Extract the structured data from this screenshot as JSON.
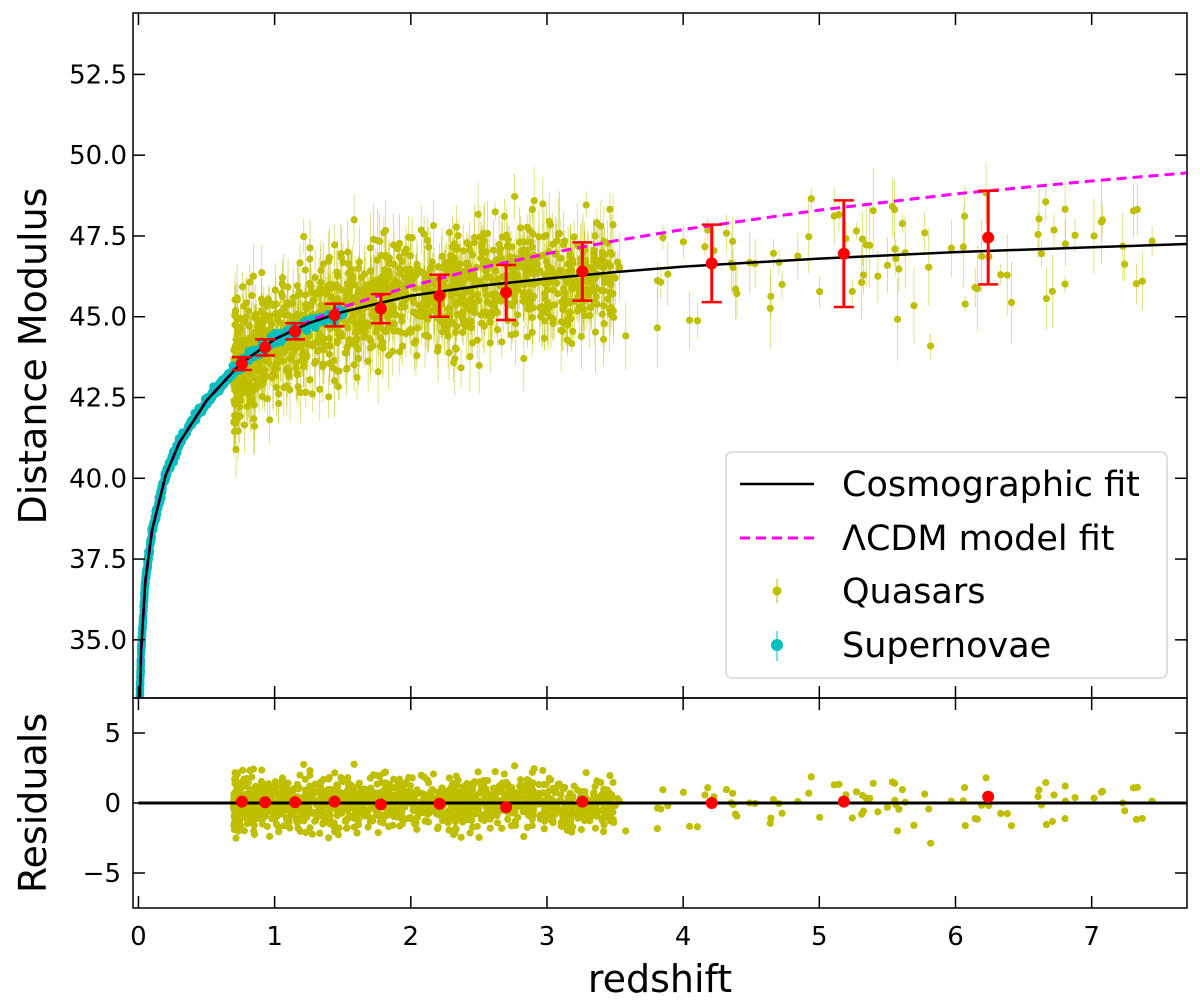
{
  "chart_data": [
    {
      "type": "scatter",
      "panel": "main",
      "title": "",
      "xlabel": "",
      "ylabel": "Distance Modulus",
      "xlim": [
        -0.04,
        7.7
      ],
      "ylim": [
        33.2,
        54.4
      ],
      "xticks": [
        0,
        1,
        2,
        3,
        4,
        5,
        6,
        7
      ],
      "yticks": [
        35.0,
        37.5,
        40.0,
        42.5,
        45.0,
        47.5,
        50.0,
        52.5
      ],
      "ytick_labels": [
        "35.0",
        "37.5",
        "40.0",
        "42.5",
        "45.0",
        "47.5",
        "50.0",
        "52.5"
      ],
      "legend": {
        "location": "lower-right",
        "entries": [
          "Cosmographic fit",
          "ΛCDM model fit",
          "Quasars",
          "Supernovae"
        ]
      },
      "series": [
        {
          "name": "Cosmographic fit",
          "kind": "line",
          "color": "#000000",
          "x": [
            0.01,
            0.02,
            0.05,
            0.1,
            0.2,
            0.3,
            0.5,
            0.75,
            1.0,
            1.25,
            1.5,
            2.0,
            2.5,
            3.0,
            3.5,
            4.0,
            5.0,
            6.0,
            7.0,
            7.7
          ],
          "y": [
            33.2,
            34.7,
            36.8,
            38.4,
            40.1,
            41.1,
            42.4,
            43.55,
            44.3,
            44.8,
            45.15,
            45.65,
            45.95,
            46.18,
            46.38,
            46.55,
            46.8,
            47.0,
            47.15,
            47.25
          ]
        },
        {
          "name": "ΛCDM model fit",
          "kind": "dashed-line",
          "color": "#ff00ff",
          "x": [
            0.01,
            0.02,
            0.05,
            0.1,
            0.2,
            0.3,
            0.5,
            0.75,
            1.0,
            1.25,
            1.5,
            2.0,
            2.5,
            3.0,
            3.5,
            4.0,
            5.0,
            6.0,
            7.0,
            7.7
          ],
          "y": [
            33.2,
            34.7,
            36.8,
            38.4,
            40.1,
            41.1,
            42.4,
            43.55,
            44.3,
            44.85,
            45.3,
            45.95,
            46.5,
            46.95,
            47.35,
            47.7,
            48.3,
            48.8,
            49.2,
            49.45
          ]
        },
        {
          "name": "Binned averages",
          "kind": "errorbar",
          "color": "#ff0000",
          "x": [
            0.76,
            0.93,
            1.15,
            1.44,
            1.78,
            2.21,
            2.7,
            3.26,
            4.21,
            5.18,
            6.24
          ],
          "y": [
            43.55,
            44.05,
            44.55,
            45.05,
            45.25,
            45.65,
            45.75,
            46.4,
            46.65,
            46.95,
            47.45
          ],
          "yerr": [
            0.2,
            0.25,
            0.25,
            0.35,
            0.45,
            0.65,
            0.85,
            0.9,
            1.2,
            1.65,
            1.45
          ]
        }
      ]
    },
    {
      "type": "scatter",
      "panel": "residuals",
      "xlabel": "redshift",
      "ylabel": "Residuals",
      "xlim": [
        -0.04,
        7.7
      ],
      "ylim": [
        -7.5,
        7.5
      ],
      "xticks": [
        0,
        1,
        2,
        3,
        4,
        5,
        6,
        7
      ],
      "yticks": [
        -5,
        0,
        5
      ],
      "ytick_labels": [
        "−5",
        "0",
        "5"
      ],
      "series": [
        {
          "name": "Zero line",
          "kind": "line",
          "color": "#000000",
          "x": [
            0,
            7.7
          ],
          "y": [
            0,
            0
          ]
        },
        {
          "name": "Binned residuals",
          "kind": "points",
          "color": "#ff0000",
          "x": [
            0.76,
            0.93,
            1.15,
            1.44,
            1.78,
            2.21,
            2.7,
            3.26,
            4.21,
            5.18,
            6.24
          ],
          "y": [
            0.1,
            0.05,
            0.05,
            0.1,
            -0.1,
            -0.05,
            -0.3,
            0.1,
            0.0,
            0.1,
            0.45
          ]
        }
      ]
    }
  ],
  "colors": {
    "quasar": "#bfbf00",
    "supernova": "#00bfbf",
    "bin": "#ff0000",
    "cosmo": "#000000",
    "lcdm": "#ff00ff"
  }
}
